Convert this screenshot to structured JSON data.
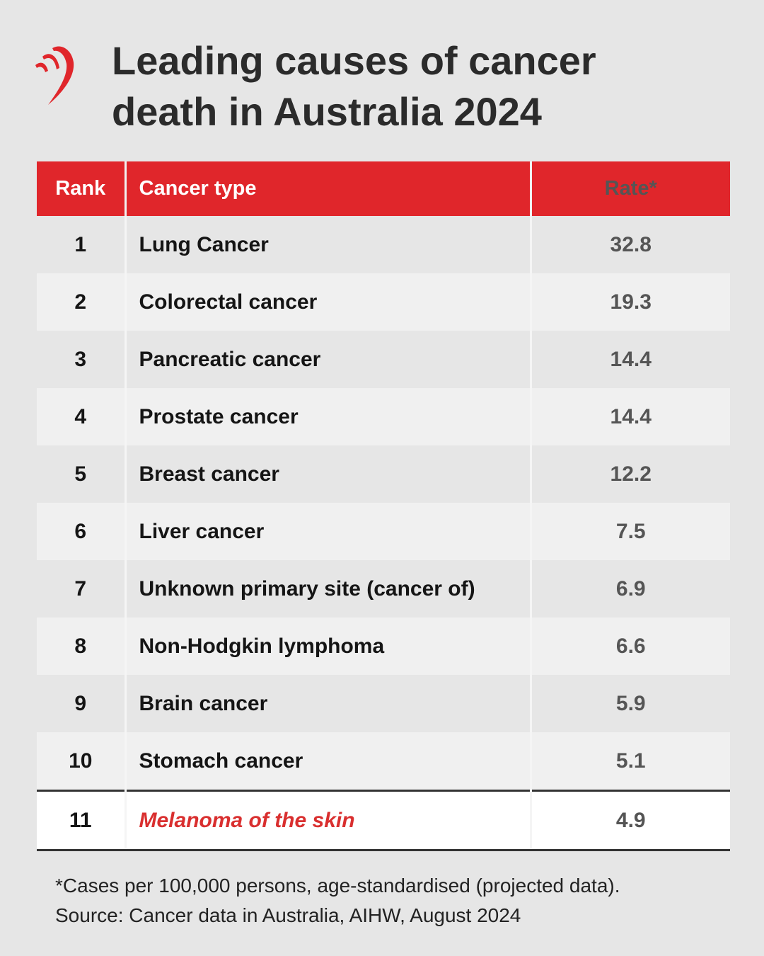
{
  "header": {
    "title": [
      "Leading causes of cancer",
      "death in Australia 2024"
    ]
  },
  "table": {
    "columns": [
      "Rank",
      "Cancer type",
      "Rate*"
    ],
    "rows": [
      [
        1,
        "Lung Cancer",
        32.8
      ],
      [
        2,
        "Colorectal cancer",
        19.3
      ],
      [
        3,
        "Pancreatic cancer",
        14.4
      ],
      [
        4,
        "Prostate cancer",
        14.4
      ],
      [
        5,
        "Breast cancer",
        12.2
      ],
      [
        6,
        "Liver cancer",
        7.5
      ],
      [
        7,
        "Unknown primary site (cancer of)",
        6.9
      ],
      [
        8,
        "Non-Hodgkin lymphoma",
        6.6
      ],
      [
        9,
        "Brain cancer",
        5.9
      ],
      [
        10,
        "Stomach cancer",
        5.1
      ],
      [
        11,
        "Melanoma of the skin",
        4.9
      ]
    ]
  },
  "footer": {
    "note": "*Cases per 100,000 persons, age-standardised (projected data).",
    "source": "Source: Cancer data in Australia, AIHW, August 2024"
  }
}
